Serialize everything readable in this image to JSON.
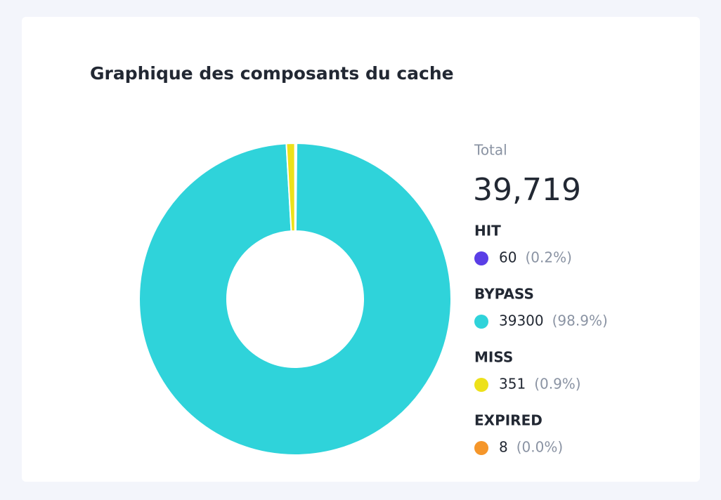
{
  "chart_data": {
    "type": "pie",
    "title": "Graphique des composants du cache",
    "total_label": "Total",
    "total": {
      "value": 39719,
      "label": "39,719"
    },
    "categories": [
      "HIT",
      "BYPASS",
      "MISS",
      "EXPIRED"
    ],
    "values": [
      60,
      39300,
      351,
      8
    ],
    "percent_labels": [
      "(0.2%)",
      "(98.9%)",
      "(0.9%)",
      "(0.0%)"
    ],
    "colors": [
      "#5a3ee6",
      "#2fd3da",
      "#ede11a",
      "#f5962a"
    ],
    "donut": true
  }
}
